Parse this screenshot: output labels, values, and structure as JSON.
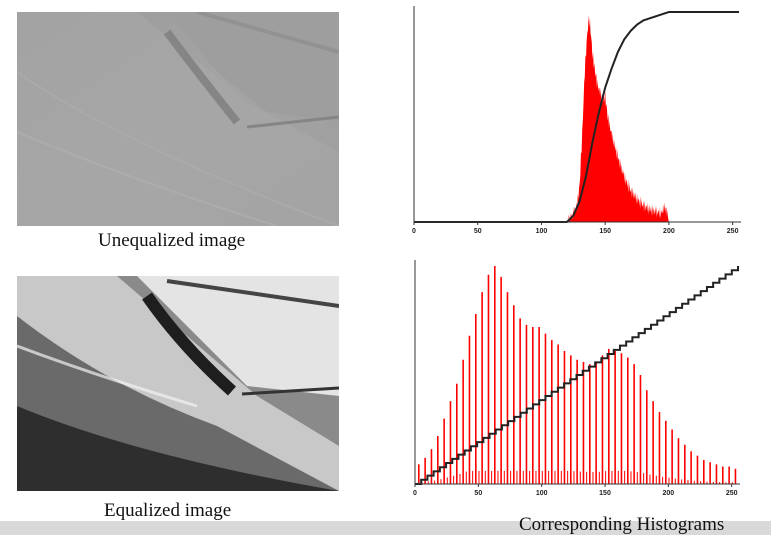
{
  "captions": {
    "top_image": "Unequalized image",
    "bottom_image": "Equalized image",
    "histograms": "Corresponding Histograms"
  },
  "colors": {
    "histogram_fill": "#ff0000",
    "cdf_line": "#222222",
    "axis": "#333333"
  },
  "chart_data": [
    {
      "type": "bar",
      "description_role": "histogram of unequalized image with cumulative curve",
      "xlim": [
        0,
        255
      ],
      "x_ticks": [
        0,
        50,
        100,
        150,
        200,
        250
      ],
      "histogram": {
        "x": [
          120,
          124,
          128,
          130,
          132,
          134,
          136,
          137,
          138,
          139,
          140,
          142,
          144,
          146,
          148,
          150,
          152,
          155,
          158,
          162,
          166,
          170,
          175,
          180,
          185,
          190,
          194,
          196,
          198,
          200
        ],
        "values": [
          0,
          0.03,
          0.08,
          0.18,
          0.42,
          0.72,
          0.9,
          0.96,
          0.95,
          0.88,
          0.8,
          0.72,
          0.65,
          0.62,
          0.58,
          0.6,
          0.5,
          0.42,
          0.35,
          0.27,
          0.2,
          0.15,
          0.11,
          0.08,
          0.06,
          0.05,
          0.04,
          0.07,
          0.06,
          0
        ]
      },
      "cdf": {
        "x": [
          0,
          120,
          125,
          130,
          135,
          140,
          145,
          150,
          155,
          160,
          165,
          170,
          175,
          180,
          190,
          200,
          210,
          255
        ],
        "values": [
          0,
          0,
          0.03,
          0.1,
          0.22,
          0.38,
          0.52,
          0.64,
          0.73,
          0.81,
          0.87,
          0.91,
          0.94,
          0.96,
          0.98,
          1.0,
          1.0,
          1.0
        ]
      }
    },
    {
      "type": "bar",
      "description_role": "histogram of equalized image with cumulative curve",
      "xlim": [
        0,
        255
      ],
      "x_ticks": [
        0,
        50,
        100,
        150,
        200,
        250
      ],
      "histogram": {
        "x": [
          3,
          8,
          13,
          18,
          23,
          28,
          33,
          38,
          43,
          48,
          53,
          58,
          63,
          68,
          73,
          78,
          83,
          88,
          93,
          98,
          103,
          108,
          113,
          118,
          123,
          128,
          133,
          138,
          143,
          148,
          153,
          158,
          163,
          168,
          173,
          178,
          183,
          188,
          193,
          198,
          203,
          208,
          213,
          218,
          223,
          228,
          233,
          238,
          243,
          248,
          253
        ],
        "values": [
          0.09,
          0.12,
          0.16,
          0.22,
          0.3,
          0.38,
          0.46,
          0.57,
          0.68,
          0.78,
          0.88,
          0.96,
          1.0,
          0.95,
          0.88,
          0.82,
          0.76,
          0.73,
          0.72,
          0.72,
          0.69,
          0.66,
          0.64,
          0.61,
          0.59,
          0.57,
          0.56,
          0.55,
          0.56,
          0.59,
          0.62,
          0.61,
          0.6,
          0.58,
          0.55,
          0.5,
          0.43,
          0.38,
          0.33,
          0.29,
          0.25,
          0.21,
          0.18,
          0.15,
          0.13,
          0.11,
          0.1,
          0.09,
          0.08,
          0.08,
          0.07
        ]
      },
      "cdf": {
        "x": [
          0,
          255
        ],
        "values": [
          0,
          1.0
        ],
        "style": "staircase"
      }
    }
  ]
}
